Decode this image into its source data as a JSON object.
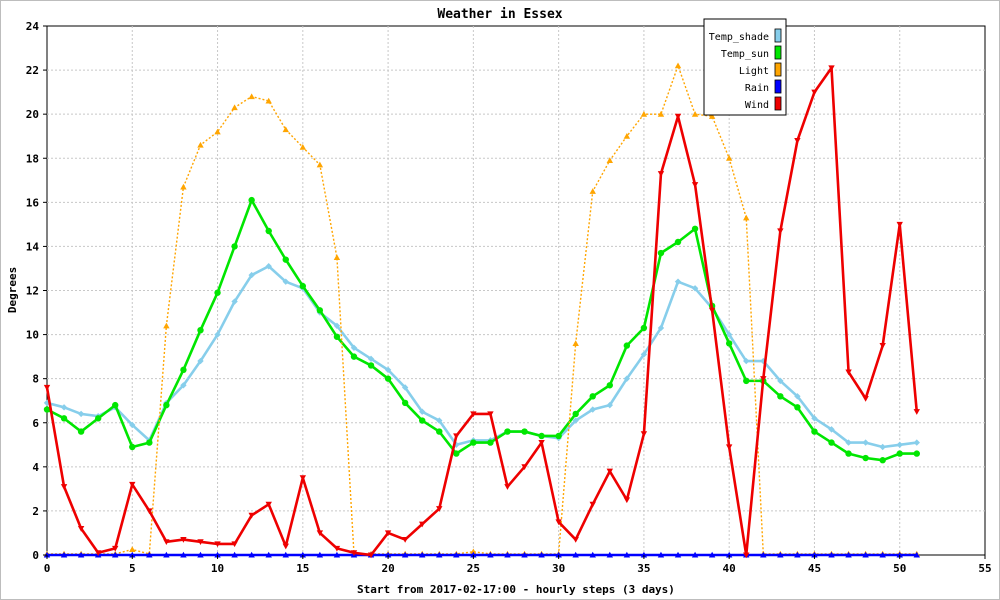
{
  "chart_data": {
    "type": "line",
    "title": "Weather in Essex",
    "xlabel": "Start from 2017-02-17:00 - hourly steps (3 days)",
    "ylabel": "Degrees",
    "xlim": [
      0,
      55
    ],
    "ylim": [
      0,
      24
    ],
    "x_ticks": [
      0,
      5,
      10,
      15,
      20,
      25,
      30,
      35,
      40,
      45,
      50,
      55
    ],
    "y_ticks": [
      0,
      2,
      4,
      6,
      8,
      10,
      12,
      14,
      16,
      18,
      20,
      22,
      24
    ],
    "grid": true,
    "legend_position": "top-right",
    "x": [
      0,
      1,
      2,
      3,
      4,
      5,
      6,
      7,
      8,
      9,
      10,
      11,
      12,
      13,
      14,
      15,
      16,
      17,
      18,
      19,
      20,
      21,
      22,
      23,
      24,
      25,
      26,
      27,
      28,
      29,
      30,
      31,
      32,
      33,
      34,
      35,
      36,
      37,
      38,
      39,
      40,
      41,
      42,
      43,
      44,
      45,
      46,
      47,
      48,
      49,
      50,
      51
    ],
    "series": [
      {
        "name": "Temp_shade",
        "color": "#87CEEB",
        "marker": "diamond",
        "dashed": false,
        "values": [
          6.9,
          6.7,
          6.4,
          6.3,
          6.7,
          5.9,
          5.2,
          6.9,
          7.7,
          8.8,
          10.0,
          11.5,
          12.7,
          13.1,
          12.4,
          12.1,
          11.0,
          10.4,
          9.4,
          8.9,
          8.4,
          7.6,
          6.5,
          6.1,
          5.0,
          5.2,
          5.2,
          5.6,
          5.6,
          5.4,
          5.3,
          6.1,
          6.6,
          6.8,
          8.0,
          9.1,
          10.3,
          12.4,
          12.1,
          11.2,
          10.0,
          8.8,
          8.8,
          7.9,
          7.2,
          6.2,
          5.7,
          5.1,
          5.1,
          4.9,
          5.0,
          5.1
        ]
      },
      {
        "name": "Temp_sun",
        "color": "#00E600",
        "marker": "circle",
        "dashed": false,
        "values": [
          6.6,
          6.2,
          5.6,
          6.2,
          6.8,
          4.9,
          5.1,
          6.8,
          8.4,
          10.2,
          11.9,
          14.0,
          16.1,
          14.7,
          13.4,
          12.2,
          11.1,
          9.9,
          9.0,
          8.6,
          8.0,
          6.9,
          6.1,
          5.6,
          4.6,
          5.1,
          5.1,
          5.6,
          5.6,
          5.4,
          5.4,
          6.4,
          7.2,
          7.7,
          9.5,
          10.3,
          13.7,
          14.2,
          14.8,
          11.3,
          9.6,
          7.9,
          7.9,
          7.2,
          6.7,
          5.6,
          5.1,
          4.6,
          4.4,
          4.3,
          4.6,
          4.6
        ]
      },
      {
        "name": "Light",
        "color": "#FFA500",
        "marker": "triangle-up",
        "dashed": true,
        "values": [
          0.05,
          0.05,
          0.05,
          0.05,
          0.05,
          0.25,
          0.05,
          10.4,
          16.7,
          18.6,
          19.2,
          20.3,
          20.8,
          20.6,
          19.3,
          18.5,
          17.7,
          13.5,
          0.05,
          0.05,
          0.05,
          0.05,
          0.05,
          0.05,
          0.05,
          0.15,
          0.05,
          0.05,
          0.05,
          0.05,
          0.05,
          9.6,
          16.5,
          17.9,
          19.0,
          20.0,
          20.0,
          22.2,
          20.0,
          19.9,
          18.0,
          15.3,
          0.05,
          0.05,
          0.05,
          0.05,
          0.05,
          0.05,
          0.05,
          0.05,
          0.05,
          0.05
        ]
      },
      {
        "name": "Rain",
        "color": "#0000FF",
        "marker": "triangle-up",
        "dashed": false,
        "values": [
          0,
          0,
          0,
          0,
          0,
          0,
          0,
          0,
          0,
          0,
          0,
          0,
          0,
          0,
          0,
          0,
          0,
          0,
          0,
          0,
          0,
          0,
          0,
          0,
          0,
          0,
          0,
          0,
          0,
          0,
          0,
          0,
          0,
          0,
          0,
          0,
          0,
          0,
          0,
          0,
          0,
          0,
          0,
          0,
          0,
          0,
          0,
          0,
          0,
          0,
          0,
          0
        ]
      },
      {
        "name": "Wind",
        "color": "#EE0000",
        "marker": "triangle-down",
        "dashed": false,
        "values": [
          7.6,
          3.1,
          1.2,
          0.1,
          0.3,
          3.2,
          2.0,
          0.6,
          0.7,
          0.6,
          0.5,
          0.5,
          1.8,
          2.3,
          0.4,
          3.5,
          1.0,
          0.3,
          0.1,
          0.0,
          1.0,
          0.7,
          1.4,
          2.1,
          5.4,
          6.4,
          6.4,
          3.1,
          4.0,
          5.1,
          1.5,
          0.7,
          2.3,
          3.8,
          2.5,
          5.5,
          17.3,
          19.9,
          16.8,
          11.1,
          4.9,
          0.0,
          8.0,
          14.7,
          18.8,
          21.0,
          22.1,
          8.3,
          7.1,
          9.5,
          15.0,
          6.5
        ]
      }
    ]
  }
}
